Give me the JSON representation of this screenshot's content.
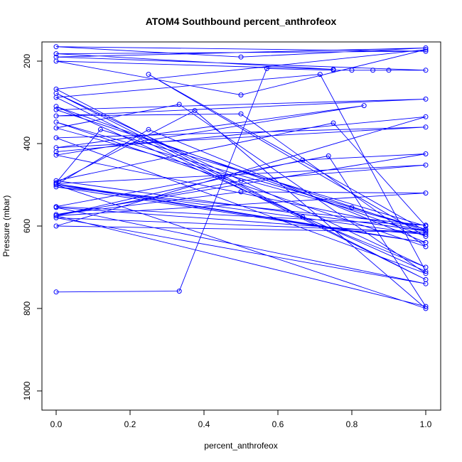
{
  "chart_data": {
    "type": "line",
    "title": "ATOM4 Southbound percent_anthrofeox",
    "xlabel": "percent_anthrofeox",
    "ylabel": "Pressure (mbar)",
    "xlim": [
      0,
      1
    ],
    "ylim": [
      1000,
      160
    ],
    "y_reversed": true,
    "x_ticks": [
      0.0,
      0.2,
      0.4,
      0.6,
      0.8,
      1.0
    ],
    "x_tick_labels": [
      "0.0",
      "0.2",
      "0.4",
      "0.6",
      "0.8",
      "1.0"
    ],
    "y_ticks": [
      200,
      400,
      600,
      800,
      1000
    ],
    "y_tick_labels": [
      "200",
      "400",
      "600",
      "800",
      "1000"
    ],
    "grid": false,
    "legend": "none",
    "series": [
      {
        "color": "#0000ff",
        "marker": "open-circle",
        "x": [
          0.0,
          0.333,
          0.57,
          0.75,
          0.8,
          0.857,
          0.9,
          1.0,
          0.0,
          1.0,
          0.5,
          0.0,
          1.0,
          0.0,
          0.75,
          0.0,
          0.5,
          1.0,
          0.0,
          0.667,
          1.0,
          0.0,
          1.0,
          0.0,
          0.714,
          1.0,
          0.0,
          1.0,
          0.25,
          1.0,
          0.0,
          1.0,
          0.0,
          0.5,
          1.0,
          0.0,
          0.8,
          1.0,
          0.0,
          0.333,
          1.0,
          0.0,
          1.0,
          0.0,
          0.833,
          0.0,
          1.0,
          0.0,
          0.75,
          1.0,
          0.12,
          0.0,
          0.375,
          1.0,
          0.0,
          0.25,
          1.0,
          0.0,
          1.0,
          0.0,
          0.737,
          1.0,
          0.0,
          0.667,
          1.0,
          0.0,
          0.5,
          1.0,
          0.0,
          0.5,
          1.0,
          0.0,
          1.0,
          0.0,
          1.0,
          0.0,
          1.0,
          0.0,
          1.0,
          0.0,
          1.0,
          0.0
        ],
        "y": [
          760,
          758,
          218,
          222,
          222,
          222,
          222,
          222,
          190,
          168,
          190,
          165,
          176,
          182,
          220,
          200,
          282,
          172,
          268,
          578,
          700,
          278,
          730,
          288,
          232,
          710,
          310,
          625,
          232,
          612,
          318,
          292,
          333,
          328,
          650,
          348,
          555,
          608,
          362,
          305,
          715,
          386,
          360,
          410,
          308,
          428,
          612,
          490,
          350,
          600,
          366,
          495,
          320,
          800,
          500,
          366,
          640,
          505,
          598,
          553,
          430,
          795,
          575,
          440,
          425,
          572,
          517,
          520,
          575,
          490,
          452,
          497,
          640,
          500,
          620,
          555,
          740,
          580,
          615,
          600,
          335,
          420
        ]
      }
    ]
  }
}
